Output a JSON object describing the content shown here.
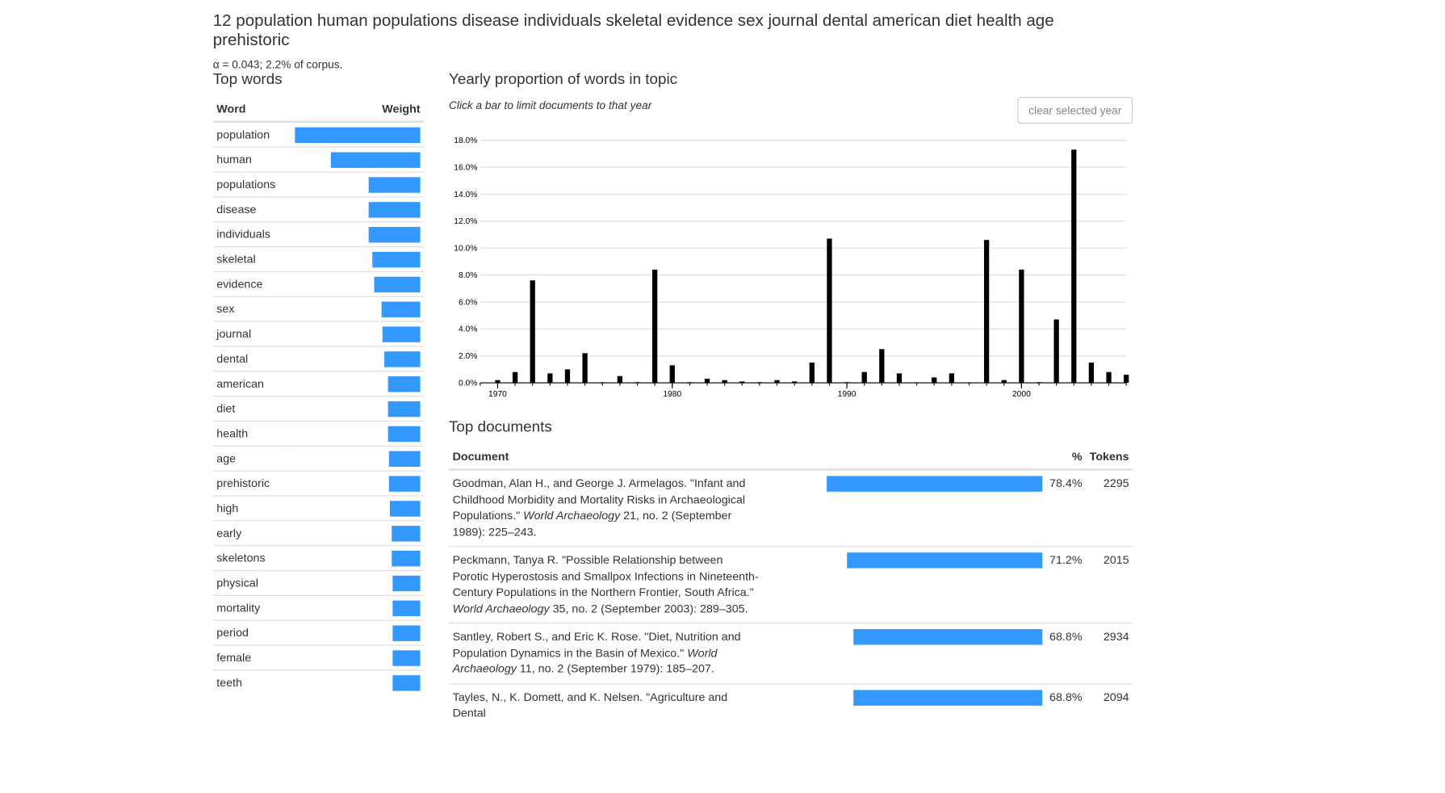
{
  "topic": {
    "title": "12 population human populations disease individuals skeletal evidence sex journal dental american diet health age prehistoric",
    "corpus_line": "α = 0.043; 2.2% of corpus."
  },
  "top_words": {
    "title": "Top words",
    "col_word": "Word",
    "col_weight": "Weight",
    "rows": [
      {
        "word": "population",
        "weight": 1.0
      },
      {
        "word": "human",
        "weight": 0.71
      },
      {
        "word": "populations",
        "weight": 0.41
      },
      {
        "word": "disease",
        "weight": 0.41
      },
      {
        "word": "individuals",
        "weight": 0.41
      },
      {
        "word": "skeletal",
        "weight": 0.38
      },
      {
        "word": "evidence",
        "weight": 0.37
      },
      {
        "word": "sex",
        "weight": 0.31
      },
      {
        "word": "journal",
        "weight": 0.3
      },
      {
        "word": "dental",
        "weight": 0.29
      },
      {
        "word": "american",
        "weight": 0.26
      },
      {
        "word": "diet",
        "weight": 0.26
      },
      {
        "word": "health",
        "weight": 0.26
      },
      {
        "word": "age",
        "weight": 0.25
      },
      {
        "word": "prehistoric",
        "weight": 0.25
      },
      {
        "word": "high",
        "weight": 0.24
      },
      {
        "word": "early",
        "weight": 0.23
      },
      {
        "word": "skeletons",
        "weight": 0.23
      },
      {
        "word": "physical",
        "weight": 0.22
      },
      {
        "word": "mortality",
        "weight": 0.22
      },
      {
        "word": "period",
        "weight": 0.22
      },
      {
        "word": "female",
        "weight": 0.22
      },
      {
        "word": "teeth",
        "weight": 0.22
      }
    ]
  },
  "yearly": {
    "title": "Yearly proportion of words in topic",
    "hint": "Click a bar to limit documents to that year",
    "clear_button": "clear selected year"
  },
  "chart_data": {
    "type": "bar",
    "title": "Yearly proportion of words in topic",
    "xlabel": "",
    "ylabel": "",
    "ylim": [
      0,
      18
    ],
    "xlim": [
      1969,
      2006
    ],
    "y_ticks": [
      "0.0%",
      "2.0%",
      "4.0%",
      "6.0%",
      "8.0%",
      "10.0%",
      "12.0%",
      "14.0%",
      "16.0%",
      "18.0%"
    ],
    "x_ticks": [
      "1970",
      "1980",
      "1990",
      "2000"
    ],
    "grid": true,
    "years": [
      1970,
      1971,
      1972,
      1973,
      1974,
      1975,
      1976,
      1977,
      1978,
      1979,
      1980,
      1981,
      1982,
      1983,
      1984,
      1985,
      1986,
      1987,
      1988,
      1989,
      1990,
      1991,
      1992,
      1993,
      1994,
      1995,
      1996,
      1997,
      1998,
      1999,
      2000,
      2001,
      2002,
      2003,
      2004,
      2005,
      2006
    ],
    "values": [
      0.2,
      0.8,
      7.6,
      0.7,
      1.0,
      2.2,
      0,
      0.5,
      0.05,
      8.4,
      1.3,
      0.05,
      0.3,
      0.2,
      0.1,
      0.05,
      0.2,
      0.1,
      1.5,
      10.7,
      0.05,
      0.8,
      2.5,
      0.7,
      0,
      0.4,
      0.7,
      0,
      10.6,
      0.2,
      8.4,
      0.05,
      4.7,
      17.3,
      1.5,
      0.8,
      0.6
    ]
  },
  "top_documents": {
    "title": "Top documents",
    "col_document": "Document",
    "col_percent": "%",
    "col_tokens": "Tokens",
    "rows": [
      {
        "pre": "Goodman, Alan H., and George J. Armelagos. \"Infant and Childhood Morbidity and Mortality Risks in Archaeological Populations.\" ",
        "journal": "World Archaeology",
        "post": " 21, no. 2 (September 1989): 225–243.",
        "fraction": 0.784,
        "percent": "78.4%",
        "tokens": "2295"
      },
      {
        "pre": "Peckmann, Tanya R. \"Possible Relationship between Porotic Hyperostosis and Smallpox Infections in Nineteenth-Century Populations in the Northern Frontier, South Africa.\" ",
        "journal": "World Archaeology",
        "post": " 35, no. 2 (September 2003): 289–305.",
        "fraction": 0.712,
        "percent": "71.2%",
        "tokens": "2015"
      },
      {
        "pre": "Santley, Robert S., and Eric K. Rose. \"Diet, Nutrition and Population Dynamics in the Basin of Mexico.\" ",
        "journal": "World Archaeology",
        "post": " 11, no. 2 (September 1979): 185–207.",
        "fraction": 0.688,
        "percent": "68.8%",
        "tokens": "2934"
      },
      {
        "pre": "Tayles, N., K. Domett, and K. Nelsen. \"Agriculture and Dental",
        "journal": "",
        "post": "",
        "fraction": 0.688,
        "percent": "68.8%",
        "tokens": "2094"
      }
    ]
  }
}
